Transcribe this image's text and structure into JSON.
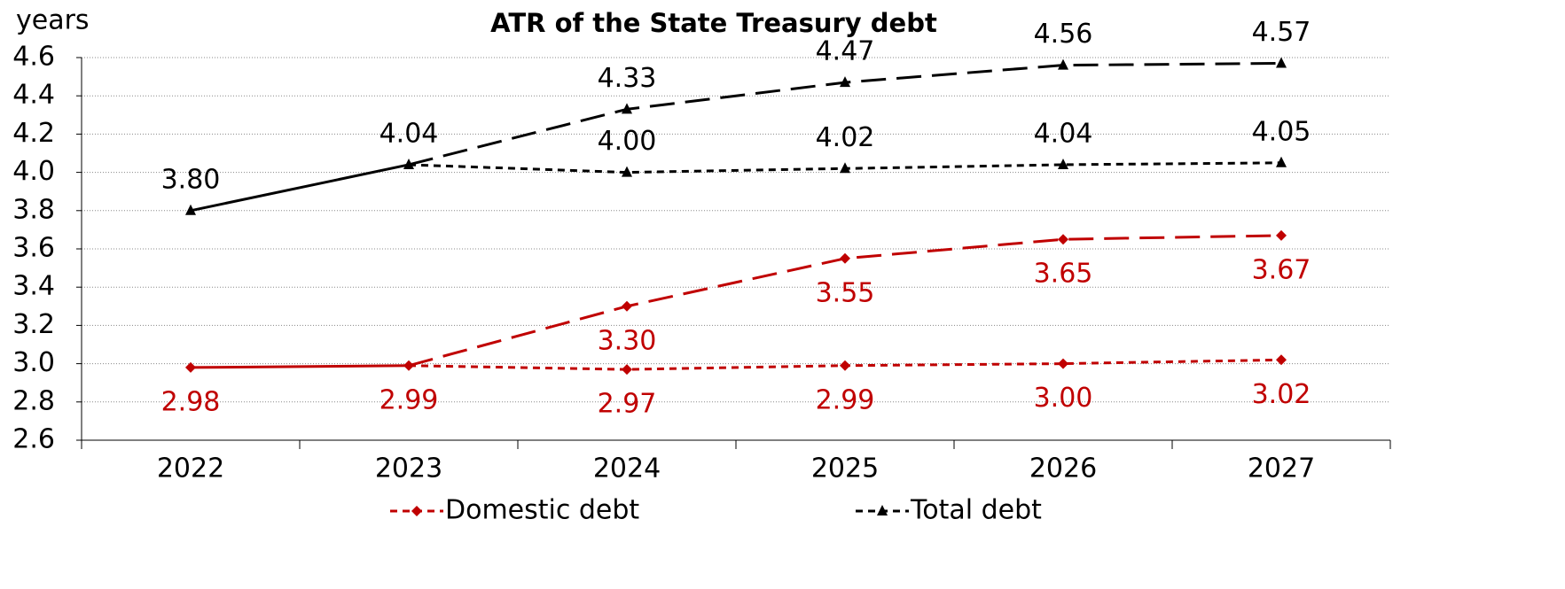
{
  "chart_data": {
    "type": "line",
    "title": "ATR of the State Treasury debt",
    "y_label": "years",
    "categories": [
      "2022",
      "2023",
      "2024",
      "2025",
      "2026",
      "2027"
    ],
    "ylim": [
      2.6,
      4.6
    ],
    "yticks": [
      2.6,
      2.8,
      {
        "value": 3.0,
        "label": "3.0"
      },
      3.2,
      3.4,
      3.6,
      3.8,
      {
        "value": 4.0,
        "label": "4.0"
      },
      4.2,
      4.4,
      4.6
    ],
    "grid": true,
    "legend": "bottom",
    "series": [
      {
        "name": "Domestic debt",
        "color": "#c00000",
        "dash": "short",
        "marker": "diamond",
        "label_side": "below",
        "values": [
          2.98,
          2.99,
          2.97,
          2.99,
          3.0,
          3.02
        ],
        "value_labels": [
          "2.98",
          "2.99",
          "2.97",
          "2.99",
          "3.00",
          "3.02"
        ]
      },
      {
        "color": "#c00000",
        "dash": "long",
        "marker": "diamond",
        "label_side": "below",
        "values": [
          2.98,
          2.99,
          3.3,
          3.55,
          3.65,
          3.67
        ],
        "value_labels": [
          "2.98",
          "2.99",
          "3.30",
          "3.55",
          "3.65",
          "3.67"
        ]
      },
      {
        "name": "Total debt",
        "color": "#000000",
        "dash": "short",
        "marker": "triangle",
        "label_side": "above",
        "values": [
          3.8,
          4.04,
          4.0,
          4.02,
          4.04,
          4.05
        ],
        "value_labels": [
          "3.80",
          "4.04",
          "4.00",
          "4.02",
          "4.04",
          "4.05"
        ]
      },
      {
        "color": "#000000",
        "dash": "long",
        "marker": "triangle",
        "label_side": "above",
        "values": [
          3.8,
          4.04,
          4.33,
          4.47,
          4.56,
          4.57
        ],
        "value_labels": [
          "3.80",
          "4.04",
          "4.33",
          "4.47",
          "4.56",
          "4.57"
        ]
      }
    ]
  }
}
